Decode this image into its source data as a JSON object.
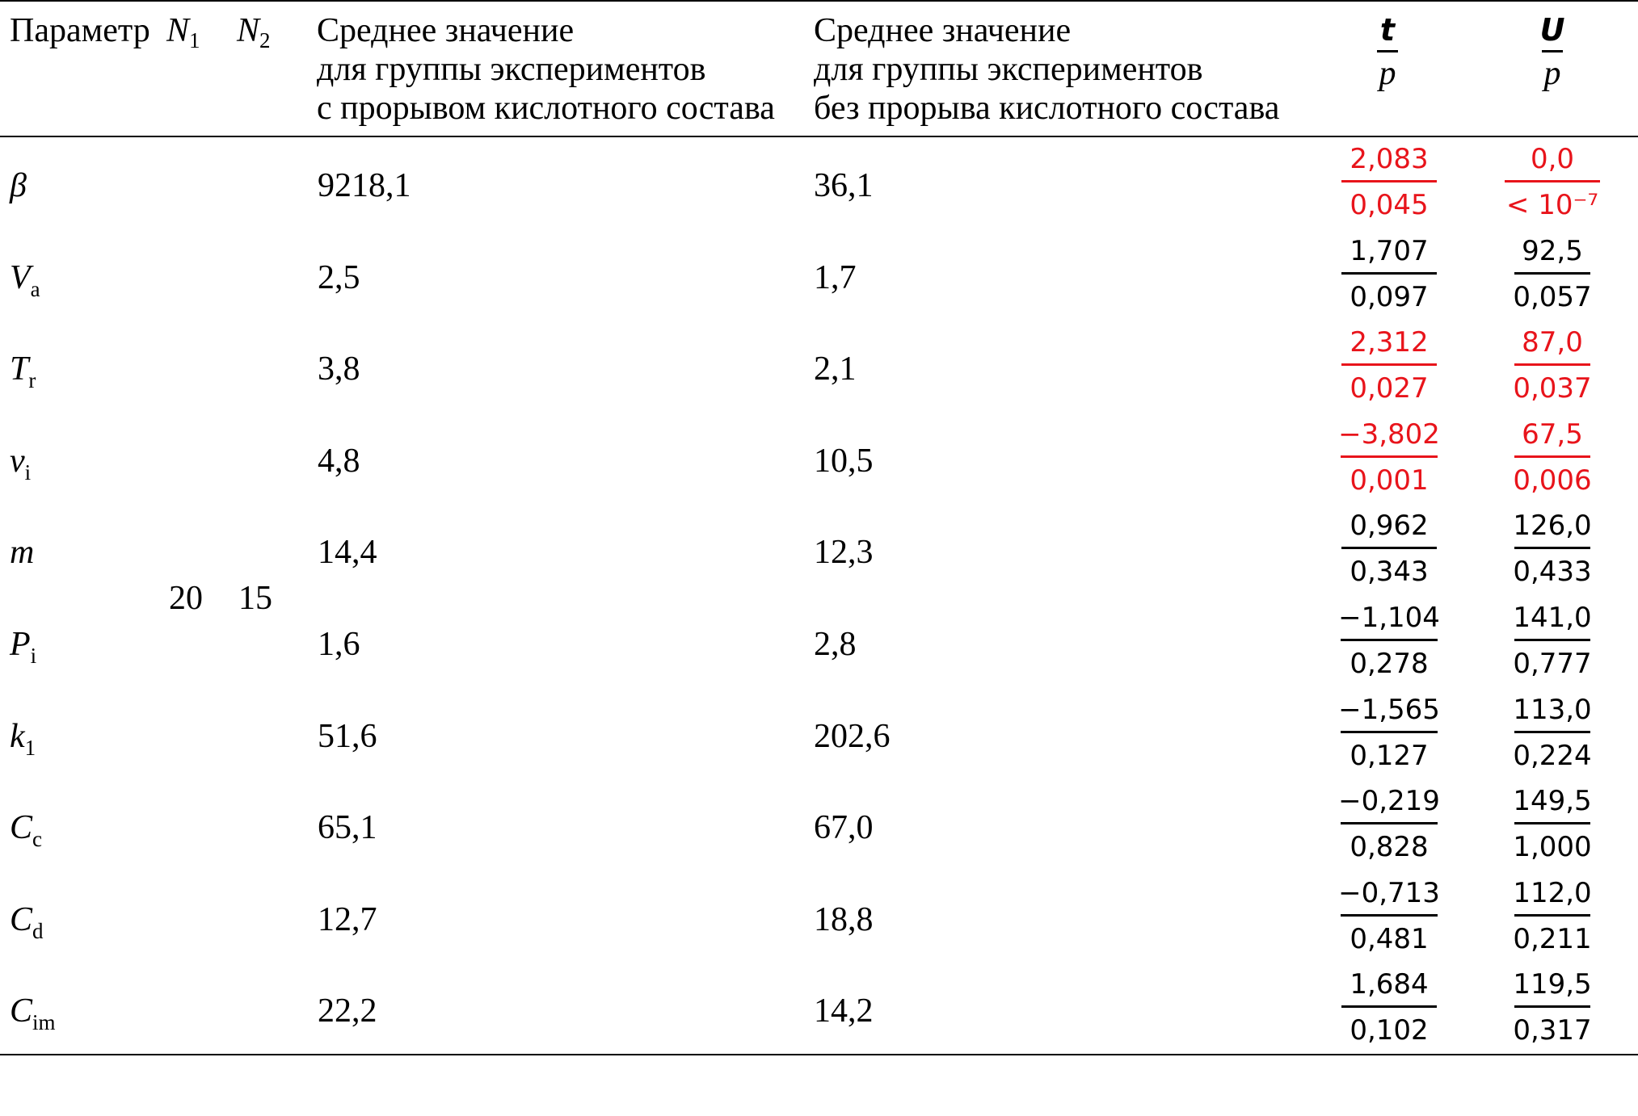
{
  "header": {
    "param": "Параметр",
    "n1": "N",
    "n1_sub": "1",
    "n2": "N",
    "n2_sub": "2",
    "col1_lines": [
      "Среднее значение",
      "для группы экспериментов",
      "с прорывом кислотного состава"
    ],
    "col2_lines": [
      "Среднее значение",
      "для группы экспериментов",
      "без прорыва кислотного состава"
    ],
    "t_num": "t",
    "t_den": "p",
    "u_num": "U",
    "u_den": "p"
  },
  "n_values": {
    "n1": "20",
    "n2": "15"
  },
  "rows": [
    {
      "param": "β",
      "sub": "",
      "v1": "9218,1",
      "v2": "36,1",
      "t": "2,083",
      "tp": "0,045",
      "u": "0,0",
      "up": "< 10⁻⁷",
      "highlight": true
    },
    {
      "param": "V",
      "sub": "a",
      "v1": "2,5",
      "v2": "1,7",
      "t": "1,707",
      "tp": "0,097",
      "u": "92,5",
      "up": "0,057",
      "highlight": false
    },
    {
      "param": "T",
      "sub": "r",
      "v1": "3,8",
      "v2": "2,1",
      "t": "2,312",
      "tp": "0,027",
      "u": "87,0",
      "up": "0,037",
      "highlight": true
    },
    {
      "param": "v",
      "sub": "i",
      "v1": "4,8",
      "v2": "10,5",
      "t": "−3,802",
      "tp": "0,001",
      "u": "67,5",
      "up": "0,006",
      "highlight": true
    },
    {
      "param": "m",
      "sub": "",
      "v1": "14,4",
      "v2": "12,3",
      "t": "0,962",
      "tp": "0,343",
      "u": "126,0",
      "up": "0,433",
      "highlight": false
    },
    {
      "param": "P",
      "sub": "i",
      "v1": "1,6",
      "v2": "2,8",
      "t": "−1,104",
      "tp": "0,278",
      "u": "141,0",
      "up": "0,777",
      "highlight": false
    },
    {
      "param": "k",
      "sub": "1",
      "v1": "51,6",
      "v2": "202,6",
      "t": "−1,565",
      "tp": "0,127",
      "u": "113,0",
      "up": "0,224",
      "highlight": false
    },
    {
      "param": "C",
      "sub": "c",
      "v1": "65,1",
      "v2": "67,0",
      "t": "−0,219",
      "tp": "0,828",
      "u": "149,5",
      "up": "1,000",
      "highlight": false
    },
    {
      "param": "C",
      "sub": "d",
      "v1": "12,7",
      "v2": "18,8",
      "t": "−0,713",
      "tp": "0,481",
      "u": "112,0",
      "up": "0,211",
      "highlight": false
    },
    {
      "param": "C",
      "sub": "im",
      "v1": "22,2",
      "v2": "14,2",
      "t": "1,684",
      "tp": "0,102",
      "u": "119,5",
      "up": "0,317",
      "highlight": false
    }
  ],
  "colors": {
    "highlight": "#e8141b",
    "text": "#000000"
  }
}
